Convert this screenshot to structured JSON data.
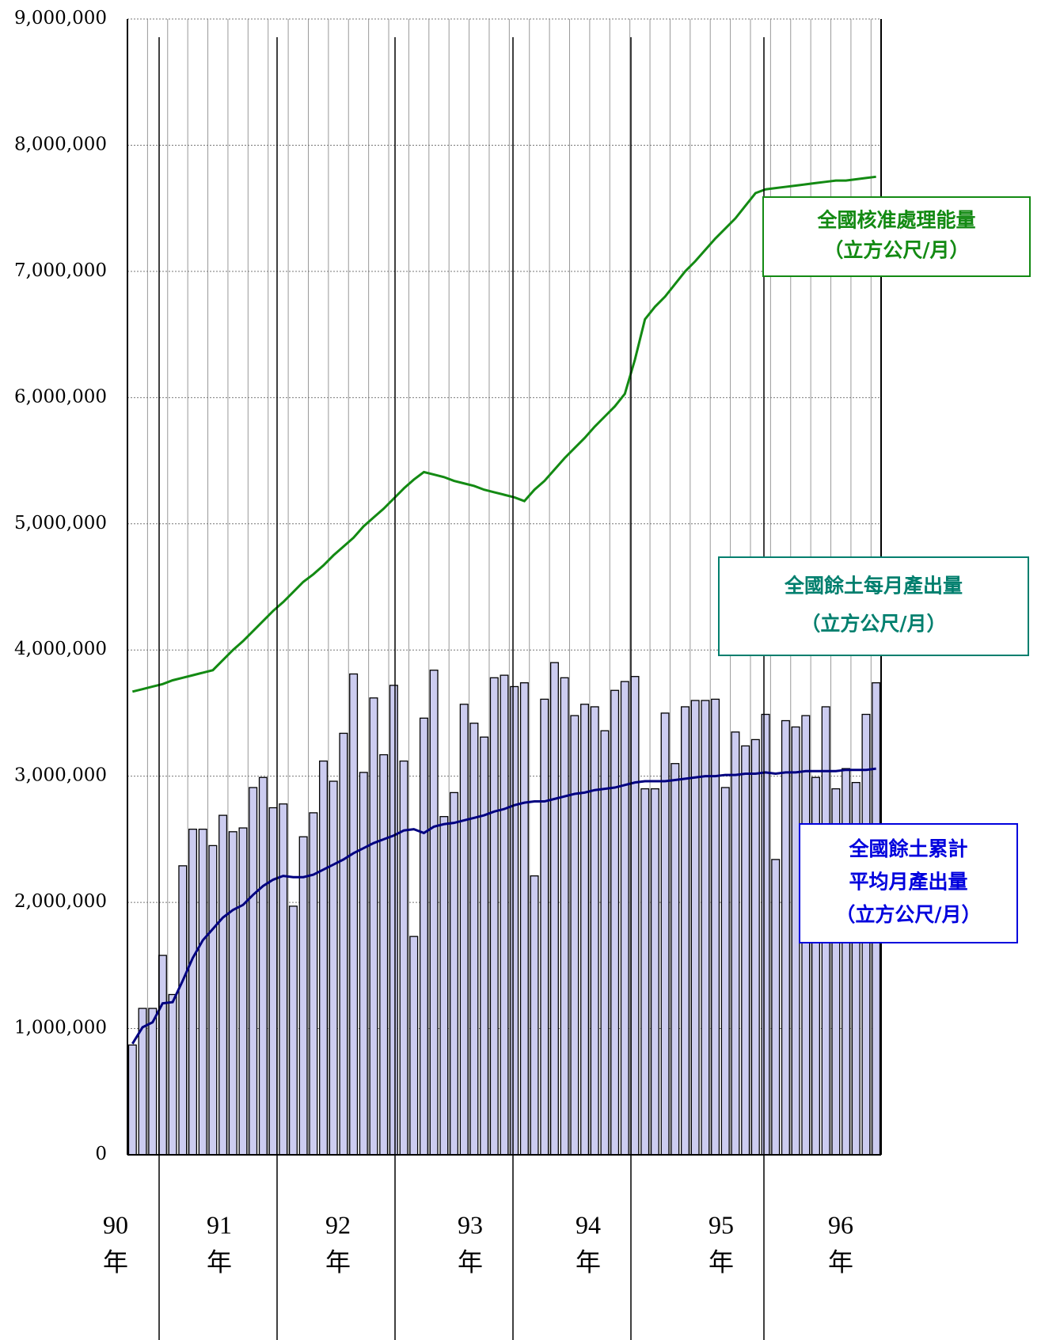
{
  "chart_data": {
    "type": "bar",
    "categories": [
      null,
      null,
      null,
      null,
      null,
      null,
      null,
      null,
      null,
      null,
      null,
      null,
      null,
      null,
      null,
      null,
      null,
      null,
      null,
      null,
      null,
      null,
      null,
      null,
      null,
      null,
      null,
      null,
      null,
      null,
      null,
      null,
      null,
      null,
      null,
      null,
      null,
      null,
      null,
      null,
      null,
      null,
      null,
      null,
      null,
      null,
      null,
      null,
      null,
      null,
      null,
      null,
      null,
      null,
      null,
      null,
      null,
      null,
      null,
      null,
      null,
      null,
      null,
      null,
      null,
      null,
      null,
      null,
      null,
      null,
      null,
      null,
      null,
      null,
      null
    ],
    "series": [
      {
        "name": [
          "全國餘土每月產出量",
          "（立方公尺/月）"
        ],
        "type": "bar",
        "color": "#ccccf0",
        "label_color": "#007f6e",
        "values": [
          870000,
          1160000,
          1160000,
          1580000,
          1270000,
          2290000,
          2580000,
          2580000,
          2450000,
          2690000,
          2560000,
          2590000,
          2910000,
          2990000,
          2750000,
          2780000,
          1970000,
          2520000,
          2710000,
          3120000,
          2960000,
          3340000,
          3810000,
          3030000,
          3620000,
          3170000,
          3720000,
          3120000,
          1730000,
          3460000,
          3840000,
          2680000,
          2870000,
          3570000,
          3420000,
          3310000,
          3780000,
          3800000,
          3710000,
          3740000,
          2210000,
          3610000,
          3900000,
          3780000,
          3480000,
          3570000,
          3550000,
          3360000,
          3680000,
          3750000,
          3790000,
          2900000,
          2900000,
          3500000,
          3100000,
          3550000,
          3600000,
          3600000,
          3610000,
          2910000,
          3350000,
          3240000,
          3290000,
          3490000,
          2340000,
          3440000,
          3390000,
          3480000,
          2990000,
          3550000,
          2900000,
          3060000,
          2950000,
          3490000,
          3740000
        ]
      },
      {
        "name": [
          "全國核准處理能量",
          "（立方公尺/月）"
        ],
        "type": "line",
        "color": "#138a13",
        "values": [
          3670000,
          3690000,
          3710000,
          3730000,
          3760000,
          3780000,
          3800000,
          3820000,
          3840000,
          3920000,
          4000000,
          4070000,
          4150000,
          4230000,
          4310000,
          4380000,
          4460000,
          4540000,
          4600000,
          4670000,
          4750000,
          4820000,
          4890000,
          4980000,
          5050000,
          5120000,
          5200000,
          5280000,
          5350000,
          5410000,
          5390000,
          5370000,
          5340000,
          5320000,
          5300000,
          5270000,
          5250000,
          5230000,
          5210000,
          5180000,
          5270000,
          5340000,
          5430000,
          5520000,
          5600000,
          5680000,
          5770000,
          5850000,
          5930000,
          6030000,
          6300000,
          6620000,
          6720000,
          6800000,
          6900000,
          7000000,
          7080000,
          7170000,
          7260000,
          7340000,
          7420000,
          7520000,
          7620000,
          7650000,
          7660000,
          7670000,
          7680000,
          7690000,
          7700000,
          7710000,
          7720000,
          7720000,
          7730000,
          7740000,
          7750000
        ]
      },
      {
        "name": [
          "全國餘土累計",
          "平均月產出量",
          "（立方公尺/月）"
        ],
        "type": "line",
        "color": "#000080",
        "label_color": "#0000dd",
        "values": [
          880000,
          1010000,
          1050000,
          1200000,
          1210000,
          1380000,
          1560000,
          1700000,
          1790000,
          1880000,
          1940000,
          1980000,
          2060000,
          2130000,
          2180000,
          2210000,
          2200000,
          2200000,
          2220000,
          2260000,
          2300000,
          2340000,
          2390000,
          2430000,
          2470000,
          2500000,
          2530000,
          2570000,
          2580000,
          2550000,
          2600000,
          2620000,
          2630000,
          2650000,
          2670000,
          2690000,
          2720000,
          2740000,
          2770000,
          2790000,
          2800000,
          2800000,
          2820000,
          2840000,
          2860000,
          2870000,
          2890000,
          2900000,
          2910000,
          2930000,
          2950000,
          2960000,
          2960000,
          2960000,
          2970000,
          2980000,
          2990000,
          3000000,
          3000000,
          3010000,
          3010000,
          3020000,
          3020000,
          3030000,
          3020000,
          3030000,
          3030000,
          3040000,
          3040000,
          3040000,
          3040000,
          3050000,
          3050000,
          3050000,
          3060000
        ]
      }
    ],
    "ylim": [
      0,
      9000000
    ],
    "yticks": [
      0,
      {
        "value": 1000000,
        "label": "1,000,000"
      },
      {
        "value": 2000000,
        "label": "2,000,000"
      },
      {
        "value": 3000000,
        "label": "3,000,000"
      },
      {
        "value": 4000000,
        "label": "4,000,000"
      },
      {
        "value": 5000000,
        "label": "5,000,000"
      },
      {
        "value": 6000000,
        "label": "6,000,000"
      },
      {
        "value": 7000000,
        "label": "7,000,000"
      },
      {
        "value": 8000000,
        "label": "8,000,000"
      },
      {
        "value": 9000000,
        "label": "9,000,000"
      }
    ],
    "grid": true,
    "year_labels": [
      "90",
      "91",
      "92",
      "93",
      "94",
      "95",
      "96"
    ],
    "year_suffix": "年"
  }
}
